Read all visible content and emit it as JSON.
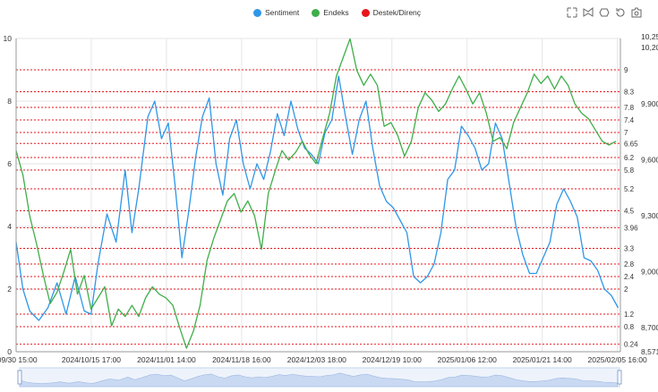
{
  "legend": {
    "items": [
      {
        "label": "Sentiment",
        "color": "#2f97e8"
      },
      {
        "label": "Endeks",
        "color": "#3fae49"
      },
      {
        "label": "Destek/Direnç",
        "color": "#e8161b"
      }
    ]
  },
  "toolbox": {
    "icons": [
      "zoom-select-icon",
      "zoom-lasso-icon",
      "zoom-reset-icon",
      "restore-icon",
      "save-image-icon"
    ]
  },
  "chart_data": {
    "type": "line",
    "x_tick_labels": [
      "/09/30 15:00",
      "2024/10/15 17:00",
      "2024/11/01 14:00",
      "2024/11/18 16:00",
      "2024/12/03 18:00",
      "2024/12/19 10:00",
      "2025/01/06 12:00",
      "2025/01/21 14:00",
      "2025/02/05 16:00"
    ],
    "y_left": {
      "min": 0,
      "max": 10,
      "ticks": [
        "0",
        "2",
        "4",
        "6",
        "8",
        "10"
      ]
    },
    "y_right": {
      "min": 8571.4,
      "max": 10251.2,
      "ticks": [
        "8,571.",
        "8,700",
        "9,000",
        "9,300",
        "9,600",
        "9,900",
        "10,200",
        "10,25"
      ]
    },
    "support_resistance_levels": [
      0.24,
      0.8,
      1.2,
      2,
      2.4,
      2.8,
      3.3,
      3.96,
      4.5,
      5.2,
      5.8,
      6.2,
      6.65,
      7,
      7.4,
      7.8,
      8.3,
      9
    ],
    "support_resistance_labels": [
      "0.24",
      "0.8",
      "1.2",
      "2",
      "2.4",
      "2.8",
      "3.3",
      "3.96",
      "4.5",
      "5.2",
      "5.8",
      "6.2",
      "6.65",
      "7",
      "7.4",
      "7.8",
      "8.3",
      "9"
    ],
    "series": [
      {
        "name": "Sentiment",
        "color": "#2f97e8",
        "axis": "left",
        "points": [
          [
            0.0,
            3.5
          ],
          [
            1.5,
            2.0
          ],
          [
            3.0,
            1.3
          ],
          [
            5.0,
            1.0
          ],
          [
            7.0,
            1.4
          ],
          [
            9.0,
            2.2
          ],
          [
            11.0,
            1.2
          ],
          [
            13.0,
            2.4
          ],
          [
            15.0,
            1.3
          ],
          [
            16.5,
            1.2
          ],
          [
            18.0,
            2.8
          ],
          [
            20.0,
            4.4
          ],
          [
            22.0,
            3.5
          ],
          [
            24.0,
            5.8
          ],
          [
            25.5,
            3.8
          ],
          [
            27.0,
            5.2
          ],
          [
            29.0,
            7.5
          ],
          [
            30.5,
            8.0
          ],
          [
            32.0,
            6.8
          ],
          [
            33.5,
            7.3
          ],
          [
            35.0,
            5.3
          ],
          [
            36.5,
            3.0
          ],
          [
            38.0,
            4.5
          ],
          [
            39.5,
            6.2
          ],
          [
            41.0,
            7.5
          ],
          [
            42.5,
            8.1
          ],
          [
            44.0,
            6.0
          ],
          [
            45.5,
            5.0
          ],
          [
            47.0,
            6.8
          ],
          [
            48.5,
            7.4
          ],
          [
            50.0,
            6.0
          ],
          [
            51.5,
            5.2
          ],
          [
            53.0,
            6.0
          ],
          [
            54.5,
            5.5
          ],
          [
            56.0,
            6.4
          ],
          [
            57.5,
            7.6
          ],
          [
            59.0,
            6.9
          ],
          [
            60.5,
            8.0
          ],
          [
            62.0,
            7.1
          ],
          [
            63.5,
            6.5
          ],
          [
            65.0,
            6.3
          ],
          [
            66.5,
            6.0
          ],
          [
            68.0,
            7.0
          ],
          [
            69.5,
            7.4
          ],
          [
            71.0,
            8.8
          ],
          [
            72.5,
            7.5
          ],
          [
            74.0,
            6.3
          ],
          [
            75.5,
            7.4
          ],
          [
            77.0,
            8.0
          ],
          [
            78.5,
            6.5
          ],
          [
            80.0,
            5.3
          ],
          [
            81.5,
            4.8
          ],
          [
            83.0,
            4.6
          ],
          [
            84.5,
            4.2
          ],
          [
            86.0,
            3.8
          ],
          [
            87.5,
            2.4
          ],
          [
            89.0,
            2.2
          ],
          [
            90.5,
            2.4
          ],
          [
            92.0,
            2.8
          ],
          [
            93.5,
            3.8
          ],
          [
            95.0,
            5.5
          ],
          [
            96.5,
            5.8
          ],
          [
            98.0,
            7.2
          ],
          [
            99.5,
            6.9
          ],
          [
            101.0,
            6.5
          ],
          [
            102.5,
            5.8
          ],
          [
            104.0,
            6.0
          ],
          [
            105.5,
            7.3
          ],
          [
            107.0,
            6.8
          ],
          [
            108.5,
            5.4
          ],
          [
            110.0,
            4.0
          ],
          [
            111.5,
            3.1
          ],
          [
            113.0,
            2.5
          ],
          [
            114.5,
            2.5
          ],
          [
            116.0,
            3.0
          ],
          [
            117.5,
            3.5
          ],
          [
            119.0,
            4.7
          ],
          [
            120.5,
            5.2
          ],
          [
            122.0,
            4.8
          ],
          [
            123.5,
            4.3
          ],
          [
            125.0,
            3.0
          ],
          [
            126.5,
            2.9
          ],
          [
            128.0,
            2.6
          ],
          [
            129.5,
            2.0
          ],
          [
            131.0,
            1.8
          ],
          [
            132.5,
            1.4
          ]
        ]
      },
      {
        "name": "Endeks",
        "color": "#3fae49",
        "axis": "right",
        "points": [
          [
            0.0,
            9650
          ],
          [
            1.5,
            9520
          ],
          [
            3.0,
            9300
          ],
          [
            4.5,
            9150
          ],
          [
            6.0,
            8980
          ],
          [
            7.5,
            8830
          ],
          [
            9.0,
            8890
          ],
          [
            10.5,
            9000
          ],
          [
            12.0,
            9120
          ],
          [
            13.5,
            8880
          ],
          [
            15.0,
            8980
          ],
          [
            16.5,
            8800
          ],
          [
            18.0,
            8860
          ],
          [
            19.5,
            8920
          ],
          [
            21.0,
            8710
          ],
          [
            22.5,
            8800
          ],
          [
            24.0,
            8760
          ],
          [
            25.5,
            8820
          ],
          [
            27.0,
            8760
          ],
          [
            28.5,
            8860
          ],
          [
            30.0,
            8920
          ],
          [
            31.5,
            8880
          ],
          [
            33.0,
            8860
          ],
          [
            34.5,
            8820
          ],
          [
            36.0,
            8700
          ],
          [
            37.5,
            8590
          ],
          [
            39.0,
            8680
          ],
          [
            40.5,
            8820
          ],
          [
            42.0,
            9060
          ],
          [
            43.5,
            9180
          ],
          [
            45.0,
            9280
          ],
          [
            46.5,
            9380
          ],
          [
            48.0,
            9420
          ],
          [
            49.5,
            9320
          ],
          [
            51.0,
            9380
          ],
          [
            52.5,
            9300
          ],
          [
            54.0,
            9120
          ],
          [
            55.5,
            9420
          ],
          [
            57.0,
            9540
          ],
          [
            58.5,
            9650
          ],
          [
            60.0,
            9600
          ],
          [
            61.5,
            9640
          ],
          [
            63.0,
            9700
          ],
          [
            64.5,
            9630
          ],
          [
            66.0,
            9580
          ],
          [
            67.5,
            9720
          ],
          [
            69.0,
            9850
          ],
          [
            70.5,
            10050
          ],
          [
            72.0,
            10150
          ],
          [
            73.5,
            10250
          ],
          [
            75.0,
            10080
          ],
          [
            76.5,
            10000
          ],
          [
            78.0,
            10060
          ],
          [
            79.5,
            10000
          ],
          [
            81.0,
            9780
          ],
          [
            82.5,
            9800
          ],
          [
            84.0,
            9730
          ],
          [
            85.5,
            9620
          ],
          [
            87.0,
            9700
          ],
          [
            88.5,
            9880
          ],
          [
            90.0,
            9960
          ],
          [
            91.5,
            9920
          ],
          [
            93.0,
            9860
          ],
          [
            94.5,
            9900
          ],
          [
            96.0,
            9980
          ],
          [
            97.5,
            10050
          ],
          [
            99.0,
            9980
          ],
          [
            100.5,
            9900
          ],
          [
            102.0,
            9960
          ],
          [
            103.5,
            9850
          ],
          [
            105.0,
            9700
          ],
          [
            106.5,
            9720
          ],
          [
            108.0,
            9660
          ],
          [
            109.5,
            9800
          ],
          [
            111.0,
            9880
          ],
          [
            112.5,
            9960
          ],
          [
            114.0,
            10060
          ],
          [
            115.5,
            10010
          ],
          [
            117.0,
            10050
          ],
          [
            118.5,
            9980
          ],
          [
            120.0,
            10050
          ],
          [
            121.5,
            10000
          ],
          [
            123.0,
            9900
          ],
          [
            124.5,
            9850
          ],
          [
            126.0,
            9820
          ],
          [
            127.5,
            9760
          ],
          [
            129.0,
            9700
          ],
          [
            130.5,
            9680
          ],
          [
            132.0,
            9700
          ]
        ]
      }
    ],
    "x_range": [
      0,
      133
    ],
    "grid": true,
    "legend_position": "top-center",
    "datazoom_slider": true
  }
}
